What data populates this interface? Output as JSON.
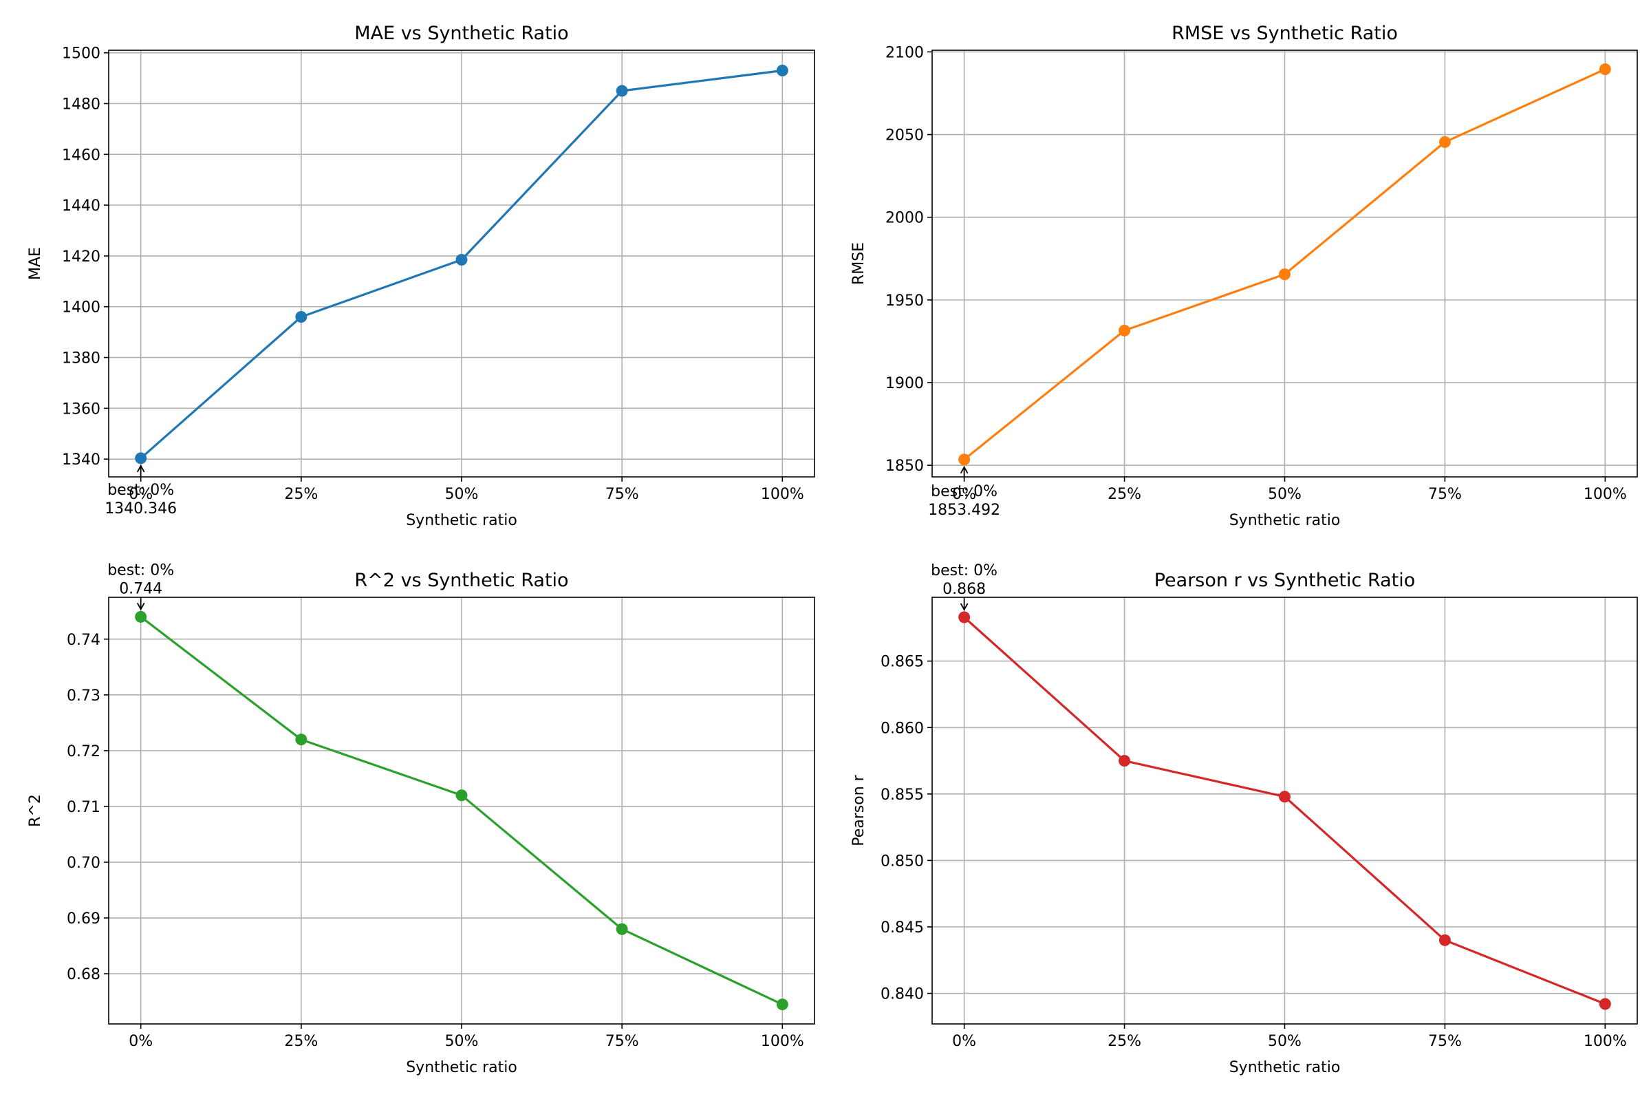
{
  "chart_data": [
    {
      "type": "line",
      "title": "MAE vs Synthetic Ratio",
      "xlabel": "Synthetic ratio",
      "ylabel": "MAE",
      "categories": [
        "0%",
        "25%",
        "50%",
        "75%",
        "100%"
      ],
      "series": [
        {
          "values": [
            1340.346,
            1396.0,
            1418.5,
            1485.0,
            1493.0
          ]
        }
      ],
      "color": "#1f77b4",
      "ylim": [
        1333,
        1501
      ],
      "yticks": [
        1340,
        1360,
        1380,
        1400,
        1420,
        1440,
        1460,
        1480,
        1500
      ],
      "ytick_labels": [
        "1340",
        "1360",
        "1380",
        "1400",
        "1420",
        "1440",
        "1460",
        "1480",
        "1500"
      ],
      "grid": true,
      "annotation": {
        "index": 0,
        "line1": "best: 0%",
        "line2": "1340.346",
        "side": "below"
      }
    },
    {
      "type": "line",
      "title": "RMSE vs Synthetic Ratio",
      "xlabel": "Synthetic ratio",
      "ylabel": "RMSE",
      "categories": [
        "0%",
        "25%",
        "50%",
        "75%",
        "100%"
      ],
      "series": [
        {
          "values": [
            1853.492,
            1931.5,
            1965.5,
            2045.5,
            2089.5
          ]
        }
      ],
      "color": "#ff7f0e",
      "ylim": [
        1843,
        2101
      ],
      "yticks": [
        1850,
        1900,
        1950,
        2000,
        2050,
        2100
      ],
      "ytick_labels": [
        "1850",
        "1900",
        "1950",
        "2000",
        "2050",
        "2100"
      ],
      "grid": true,
      "annotation": {
        "index": 0,
        "line1": "best: 0%",
        "line2": "1853.492",
        "side": "below"
      }
    },
    {
      "type": "line",
      "title": "R^2 vs Synthetic Ratio",
      "xlabel": "Synthetic ratio",
      "ylabel": "R^2",
      "categories": [
        "0%",
        "25%",
        "50%",
        "75%",
        "100%"
      ],
      "series": [
        {
          "values": [
            0.744,
            0.722,
            0.712,
            0.688,
            0.6745
          ]
        }
      ],
      "color": "#2ca02c",
      "ylim": [
        0.671,
        0.7475
      ],
      "yticks": [
        0.68,
        0.69,
        0.7,
        0.71,
        0.72,
        0.73,
        0.74
      ],
      "ytick_labels": [
        "0.68",
        "0.69",
        "0.70",
        "0.71",
        "0.72",
        "0.73",
        "0.74"
      ],
      "grid": true,
      "annotation": {
        "index": 0,
        "line1": "best: 0%",
        "line2": "0.744",
        "side": "above"
      }
    },
    {
      "type": "line",
      "title": "Pearson r vs Synthetic Ratio",
      "xlabel": "Synthetic ratio",
      "ylabel": "Pearson r",
      "categories": [
        "0%",
        "25%",
        "50%",
        "75%",
        "100%"
      ],
      "series": [
        {
          "values": [
            0.8683,
            0.8575,
            0.8548,
            0.844,
            0.8392
          ]
        }
      ],
      "color": "#d62728",
      "ylim": [
        0.8377,
        0.8698
      ],
      "yticks": [
        0.84,
        0.845,
        0.85,
        0.855,
        0.86,
        0.865
      ],
      "ytick_labels": [
        "0.840",
        "0.845",
        "0.850",
        "0.855",
        "0.860",
        "0.865"
      ],
      "grid": true,
      "annotation": {
        "index": 0,
        "line1": "best: 0%",
        "line2": "0.868",
        "side": "above"
      }
    }
  ]
}
